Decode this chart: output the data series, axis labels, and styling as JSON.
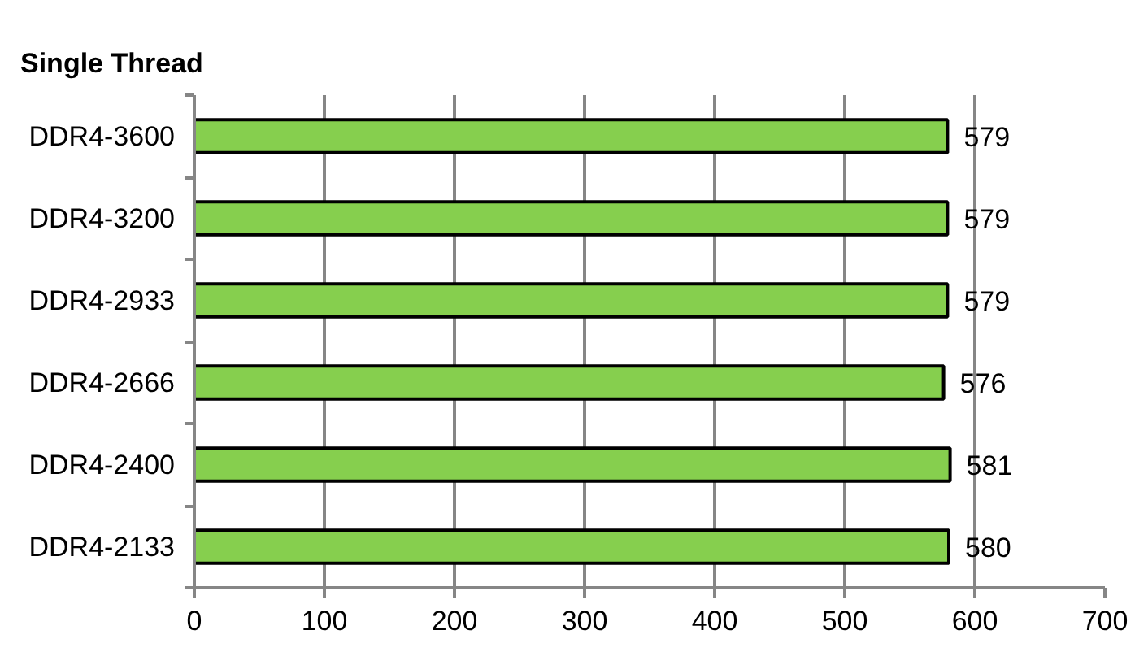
{
  "chart_data": {
    "type": "bar",
    "orientation": "horizontal",
    "title": "Single Thread",
    "categories": [
      "DDR4-3600",
      "DDR4-3200",
      "DDR4-2933",
      "DDR4-2666",
      "DDR4-2400",
      "DDR4-2133"
    ],
    "values": [
      579,
      579,
      579,
      576,
      581,
      580
    ],
    "color": "#86cf4e",
    "xlim": [
      0,
      700
    ],
    "xticks": [
      0,
      100,
      200,
      300,
      400,
      500,
      600,
      700
    ],
    "grid": "x",
    "data_labels": true
  }
}
